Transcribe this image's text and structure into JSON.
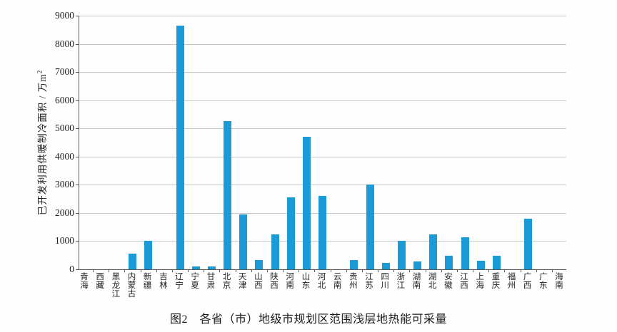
{
  "figure": {
    "caption": "图2　各省（市）地级市规划区范围浅层地热能可采量"
  },
  "chart_data": {
    "type": "bar",
    "title": "",
    "xlabel": "",
    "ylabel": "已开发利用供暖制冷面积 / 万m",
    "ylabel_superscript": "2",
    "ylim": [
      0,
      9000
    ],
    "ytick_interval": 1000,
    "grid": true,
    "legend": "none",
    "bar_color": "#1a9ad6",
    "categories": [
      "青海",
      "西藏",
      "黑龙江",
      "内蒙古",
      "新疆",
      "吉林",
      "辽宁",
      "宁夏",
      "甘肃",
      "北京",
      "天津",
      "山西",
      "陕西",
      "河南",
      "山东",
      "河北",
      "云南",
      "贵州",
      "江苏",
      "四川",
      "浙江",
      "湖南",
      "湖北",
      "安徽",
      "江西",
      "上海",
      "重庆",
      "福州",
      "广西",
      "广东",
      "海南"
    ],
    "values": [
      0,
      0,
      0,
      550,
      1000,
      0,
      8650,
      90,
      110,
      5250,
      1950,
      320,
      1230,
      2550,
      4700,
      2600,
      0,
      330,
      3000,
      240,
      1000,
      270,
      1240,
      490,
      1150,
      310,
      470,
      0,
      1800,
      0,
      0
    ]
  }
}
